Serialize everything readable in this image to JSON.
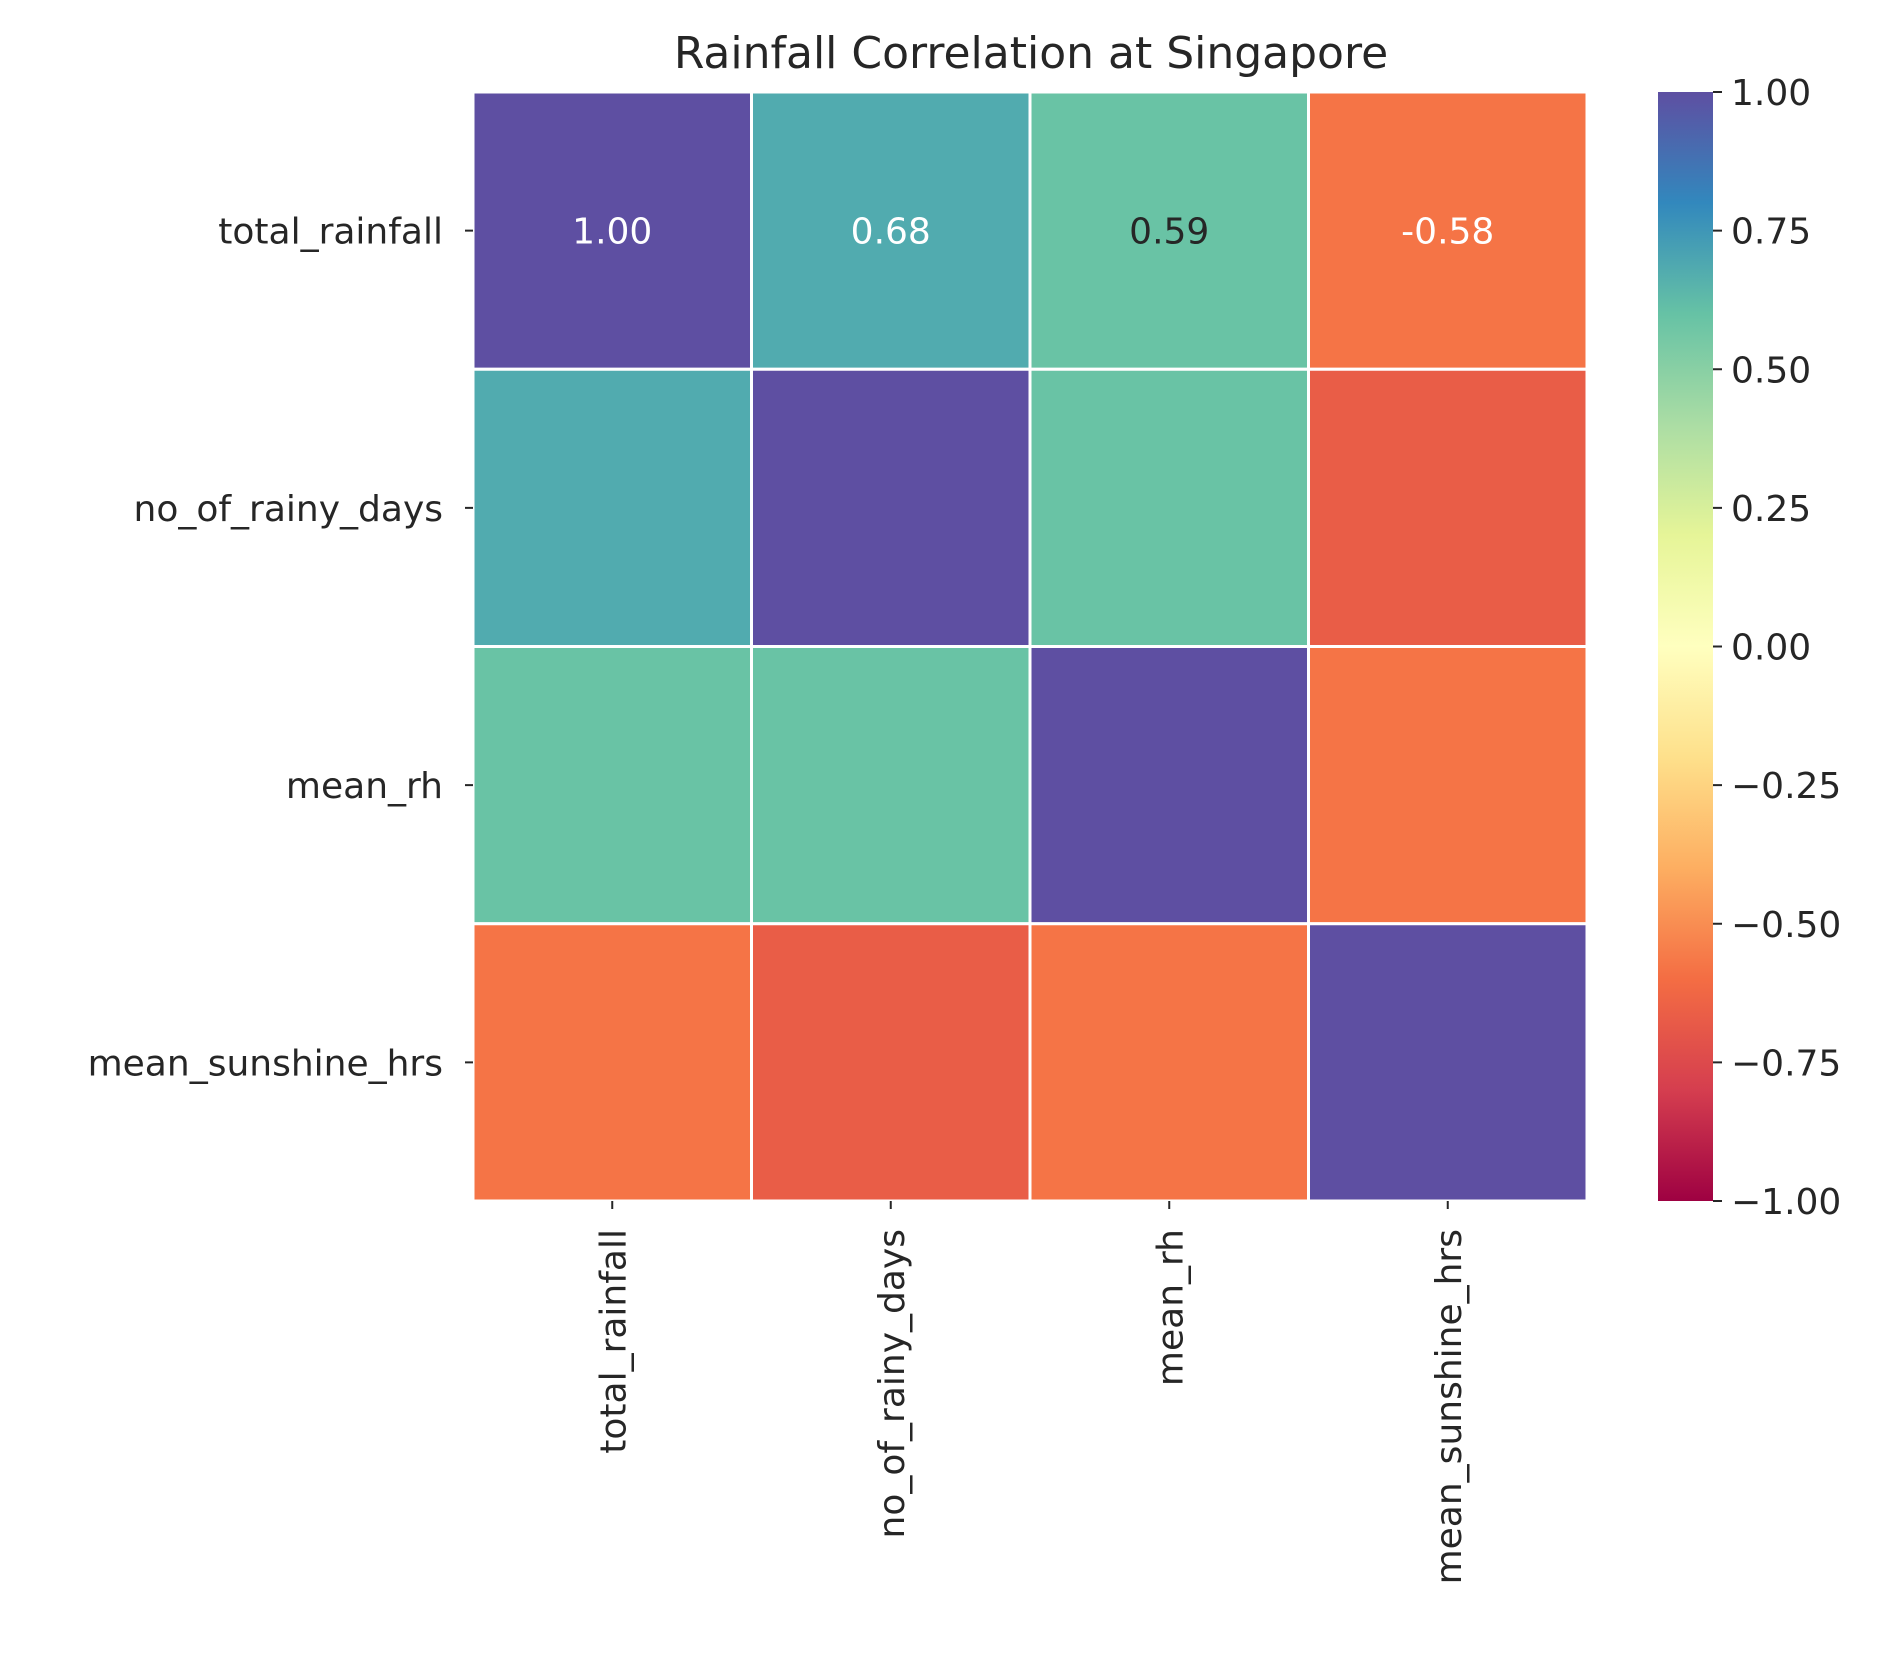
{
  "chart_data": {
    "type": "heatmap",
    "title": "Rainfall Correlation at Singapore",
    "rows": [
      "total_rainfall",
      "no_of_rainy_days",
      "mean_rh",
      "mean_sunshine_hrs"
    ],
    "columns": [
      "total_rainfall",
      "no_of_rainy_days",
      "mean_rh",
      "mean_sunshine_hrs"
    ],
    "values": [
      [
        1.0,
        0.68,
        0.59,
        -0.58
      ],
      [
        0.68,
        1.0,
        0.59,
        -0.67
      ],
      [
        0.59,
        0.59,
        1.0,
        -0.58
      ],
      [
        -0.58,
        -0.67,
        -0.58,
        1.0
      ]
    ],
    "annotated_cells": [
      {
        "row": 0,
        "col": 0,
        "text": "1.00",
        "color": "#ffffff"
      },
      {
        "row": 0,
        "col": 1,
        "text": "0.68",
        "color": "#ffffff"
      },
      {
        "row": 0,
        "col": 2,
        "text": "0.59",
        "color": "#262626"
      },
      {
        "row": 0,
        "col": 3,
        "text": "-0.58",
        "color": "#ffffff"
      }
    ],
    "colormap": "Spectral",
    "vmin": -1.0,
    "vmax": 1.0,
    "colorbar_ticks": [
      "1.00",
      "0.75",
      "0.50",
      "0.25",
      "0.00",
      "−0.25",
      "−0.50",
      "−0.75",
      "−1.00"
    ],
    "colorbar_tick_values": [
      1.0,
      0.75,
      0.5,
      0.25,
      0.0,
      -0.25,
      -0.5,
      -0.75,
      -1.0
    ],
    "colorbar_position": "right",
    "grid": false
  }
}
